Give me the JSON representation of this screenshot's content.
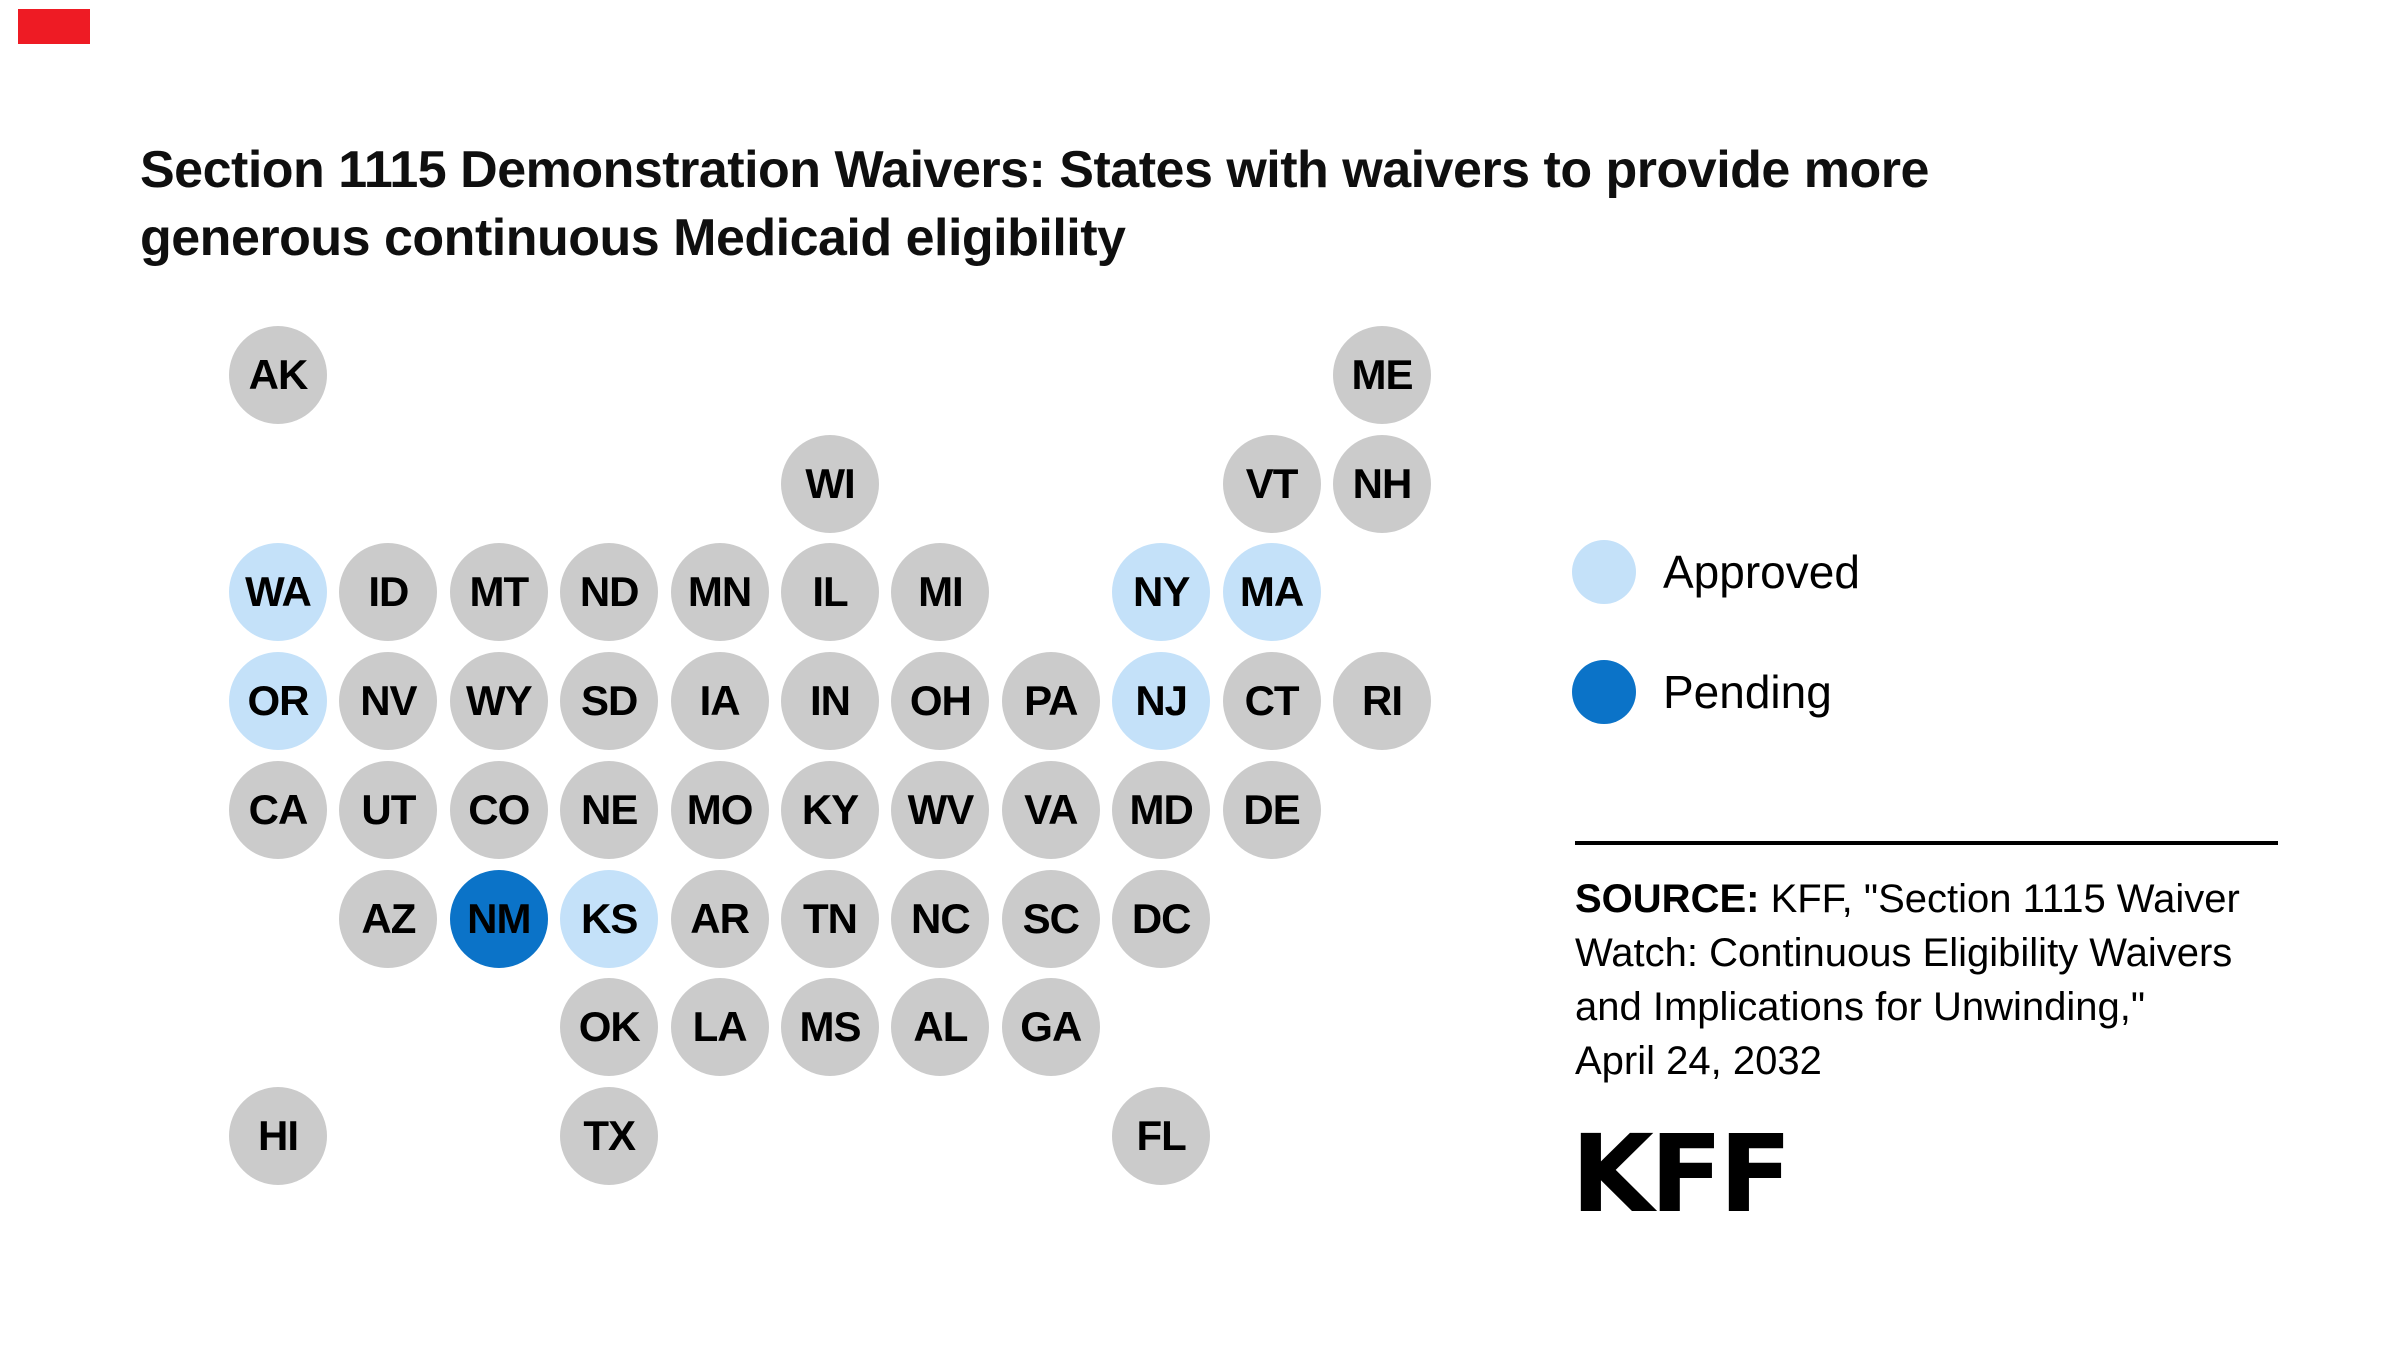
{
  "marker": {
    "color": "#ee1b24"
  },
  "title": {
    "lines": [
      "Section 1115 Demonstration Waivers: States with waivers to provide more",
      "generous continuous Medicaid eligibility"
    ]
  },
  "chart_data": {
    "type": "tile-map",
    "title": "Section 1115 Demonstration Waivers: States with waivers to provide more generous continuous Medicaid eligibility",
    "legend_position": "right",
    "default_color": "#cbcbcb",
    "tile_text_color": "#000000",
    "legend": [
      {
        "key": "approved",
        "label": "Approved",
        "color": "#c4e1f9"
      },
      {
        "key": "pending",
        "label": "Pending",
        "color": "#0b73c8"
      }
    ],
    "states": [
      {
        "abbr": "AK",
        "row": 0,
        "col": 0,
        "status": "none"
      },
      {
        "abbr": "ME",
        "row": 0,
        "col": 10,
        "status": "none"
      },
      {
        "abbr": "WI",
        "row": 1,
        "col": 5,
        "status": "none"
      },
      {
        "abbr": "VT",
        "row": 1,
        "col": 9,
        "status": "none"
      },
      {
        "abbr": "NH",
        "row": 1,
        "col": 10,
        "status": "none"
      },
      {
        "abbr": "WA",
        "row": 2,
        "col": 0,
        "status": "approved"
      },
      {
        "abbr": "ID",
        "row": 2,
        "col": 1,
        "status": "none"
      },
      {
        "abbr": "MT",
        "row": 2,
        "col": 2,
        "status": "none"
      },
      {
        "abbr": "ND",
        "row": 2,
        "col": 3,
        "status": "none"
      },
      {
        "abbr": "MN",
        "row": 2,
        "col": 4,
        "status": "none"
      },
      {
        "abbr": "IL",
        "row": 2,
        "col": 5,
        "status": "none"
      },
      {
        "abbr": "MI",
        "row": 2,
        "col": 6,
        "status": "none"
      },
      {
        "abbr": "NY",
        "row": 2,
        "col": 8,
        "status": "approved"
      },
      {
        "abbr": "MA",
        "row": 2,
        "col": 9,
        "status": "approved"
      },
      {
        "abbr": "OR",
        "row": 3,
        "col": 0,
        "status": "approved"
      },
      {
        "abbr": "NV",
        "row": 3,
        "col": 1,
        "status": "none"
      },
      {
        "abbr": "WY",
        "row": 3,
        "col": 2,
        "status": "none"
      },
      {
        "abbr": "SD",
        "row": 3,
        "col": 3,
        "status": "none"
      },
      {
        "abbr": "IA",
        "row": 3,
        "col": 4,
        "status": "none"
      },
      {
        "abbr": "IN",
        "row": 3,
        "col": 5,
        "status": "none"
      },
      {
        "abbr": "OH",
        "row": 3,
        "col": 6,
        "status": "none"
      },
      {
        "abbr": "PA",
        "row": 3,
        "col": 7,
        "status": "none"
      },
      {
        "abbr": "NJ",
        "row": 3,
        "col": 8,
        "status": "approved"
      },
      {
        "abbr": "CT",
        "row": 3,
        "col": 9,
        "status": "none"
      },
      {
        "abbr": "RI",
        "row": 3,
        "col": 10,
        "status": "none"
      },
      {
        "abbr": "CA",
        "row": 4,
        "col": 0,
        "status": "none"
      },
      {
        "abbr": "UT",
        "row": 4,
        "col": 1,
        "status": "none"
      },
      {
        "abbr": "CO",
        "row": 4,
        "col": 2,
        "status": "none"
      },
      {
        "abbr": "NE",
        "row": 4,
        "col": 3,
        "status": "none"
      },
      {
        "abbr": "MO",
        "row": 4,
        "col": 4,
        "status": "none"
      },
      {
        "abbr": "KY",
        "row": 4,
        "col": 5,
        "status": "none"
      },
      {
        "abbr": "WV",
        "row": 4,
        "col": 6,
        "status": "none"
      },
      {
        "abbr": "VA",
        "row": 4,
        "col": 7,
        "status": "none"
      },
      {
        "abbr": "MD",
        "row": 4,
        "col": 8,
        "status": "none"
      },
      {
        "abbr": "DE",
        "row": 4,
        "col": 9,
        "status": "none"
      },
      {
        "abbr": "AZ",
        "row": 5,
        "col": 1,
        "status": "none"
      },
      {
        "abbr": "NM",
        "row": 5,
        "col": 2,
        "status": "pending"
      },
      {
        "abbr": "KS",
        "row": 5,
        "col": 3,
        "status": "approved"
      },
      {
        "abbr": "AR",
        "row": 5,
        "col": 4,
        "status": "none"
      },
      {
        "abbr": "TN",
        "row": 5,
        "col": 5,
        "status": "none"
      },
      {
        "abbr": "NC",
        "row": 5,
        "col": 6,
        "status": "none"
      },
      {
        "abbr": "SC",
        "row": 5,
        "col": 7,
        "status": "none"
      },
      {
        "abbr": "DC",
        "row": 5,
        "col": 8,
        "status": "none"
      },
      {
        "abbr": "OK",
        "row": 6,
        "col": 3,
        "status": "none"
      },
      {
        "abbr": "LA",
        "row": 6,
        "col": 4,
        "status": "none"
      },
      {
        "abbr": "MS",
        "row": 6,
        "col": 5,
        "status": "none"
      },
      {
        "abbr": "AL",
        "row": 6,
        "col": 6,
        "status": "none"
      },
      {
        "abbr": "GA",
        "row": 6,
        "col": 7,
        "status": "none"
      },
      {
        "abbr": "HI",
        "row": 7,
        "col": 0,
        "status": "none"
      },
      {
        "abbr": "TX",
        "row": 7,
        "col": 3,
        "status": "none"
      },
      {
        "abbr": "FL",
        "row": 7,
        "col": 8,
        "status": "none"
      }
    ]
  },
  "source": {
    "label": "SOURCE:",
    "lines": [
      " KFF, \"Section 1115 Waiver",
      "Watch: Continuous Eligibility Waivers",
      "and Implications for Unwinding,\"",
      "April 24, 2032"
    ]
  },
  "logo": {
    "text": "KFF"
  }
}
